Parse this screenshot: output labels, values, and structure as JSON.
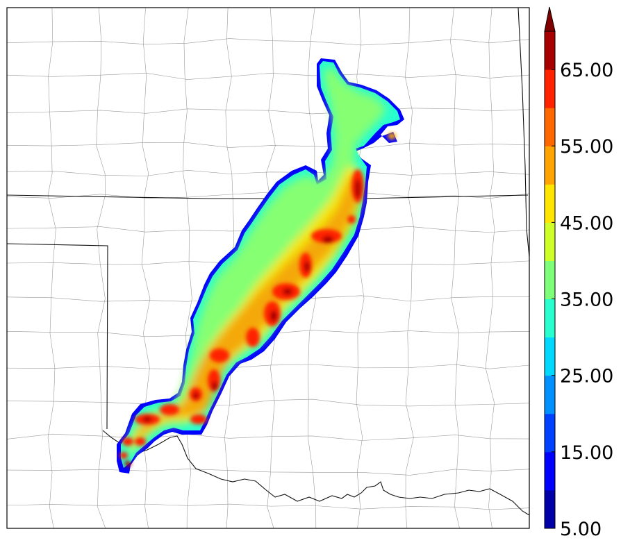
{
  "map": {
    "type": "reflectivity-composite",
    "colorbar": {
      "min": 5,
      "max": 70,
      "step": 5,
      "extend": "max",
      "tick_labels": [
        "5.00",
        "15.00",
        "25.00",
        "35.00",
        "45.00",
        "55.00",
        "65.00"
      ],
      "bins": [
        {
          "lo": 5,
          "hi": 10,
          "color": "#0000a8"
        },
        {
          "lo": 10,
          "hi": 15,
          "color": "#0000ff"
        },
        {
          "lo": 15,
          "hi": 20,
          "color": "#0040ff"
        },
        {
          "lo": 20,
          "hi": 25,
          "color": "#0090ff"
        },
        {
          "lo": 25,
          "hi": 30,
          "color": "#00d8ff"
        },
        {
          "lo": 30,
          "hi": 35,
          "color": "#29ffce"
        },
        {
          "lo": 35,
          "hi": 40,
          "color": "#7dff7a"
        },
        {
          "lo": 40,
          "hi": 45,
          "color": "#ceff29"
        },
        {
          "lo": 45,
          "hi": 50,
          "color": "#ffe600"
        },
        {
          "lo": 50,
          "hi": 55,
          "color": "#ffa400"
        },
        {
          "lo": 55,
          "hi": 60,
          "color": "#ff6800"
        },
        {
          "lo": 60,
          "hi": 65,
          "color": "#ff2300"
        },
        {
          "lo": 65,
          "hi": 70,
          "color": "#a80000"
        }
      ],
      "extend_color": "#800000"
    }
  }
}
